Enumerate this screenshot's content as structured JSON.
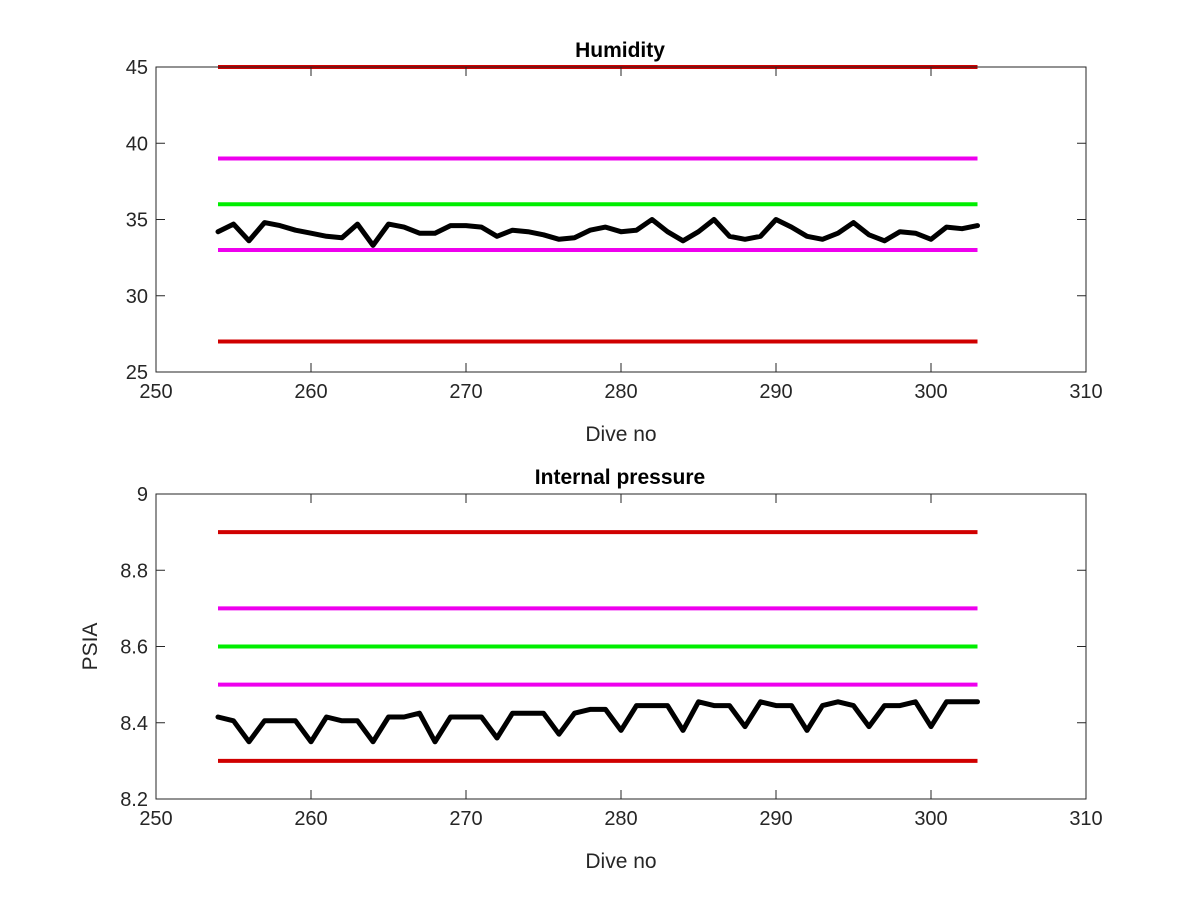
{
  "chart_data": [
    {
      "type": "line",
      "title": "Humidity",
      "xlabel": "Dive no",
      "ylabel": "",
      "xlim": [
        250,
        310
      ],
      "ylim": [
        25,
        45
      ],
      "xticks": [
        250,
        260,
        270,
        280,
        290,
        300,
        310
      ],
      "yticks": [
        25,
        30,
        35,
        40,
        45
      ],
      "grid": false,
      "legend": "none",
      "reference_lines": [
        {
          "y": 45,
          "x": [
            254,
            303
          ],
          "color": "#d00000"
        },
        {
          "y": 39,
          "x": [
            254,
            303
          ],
          "color": "#ee00ee"
        },
        {
          "y": 36,
          "x": [
            254,
            303
          ],
          "color": "#00ee00"
        },
        {
          "y": 33,
          "x": [
            254,
            303
          ],
          "color": "#ee00ee"
        },
        {
          "y": 27,
          "x": [
            254,
            303
          ],
          "color": "#d00000"
        }
      ],
      "series": [
        {
          "color": "#000000",
          "x": [
            254,
            255,
            256,
            257,
            258,
            259,
            260,
            261,
            262,
            263,
            264,
            265,
            266,
            267,
            268,
            269,
            270,
            271,
            272,
            273,
            274,
            275,
            276,
            277,
            278,
            279,
            280,
            281,
            282,
            283,
            284,
            285,
            286,
            287,
            288,
            289,
            290,
            291,
            292,
            293,
            294,
            295,
            296,
            297,
            298,
            299,
            300,
            301,
            302,
            303
          ],
          "y": [
            34.2,
            34.7,
            33.6,
            34.8,
            34.6,
            34.3,
            34.1,
            33.9,
            33.8,
            34.7,
            33.3,
            34.7,
            34.5,
            34.1,
            34.1,
            34.6,
            34.6,
            34.5,
            33.9,
            34.3,
            34.2,
            34.0,
            33.7,
            33.8,
            34.3,
            34.5,
            34.2,
            34.3,
            35.0,
            34.2,
            33.6,
            34.2,
            35.0,
            33.9,
            33.7,
            33.9,
            35.0,
            34.5,
            33.9,
            33.7,
            34.1,
            34.8,
            34.0,
            33.6,
            34.2,
            34.1,
            33.7,
            34.5,
            34.4,
            34.6
          ]
        }
      ]
    },
    {
      "type": "line",
      "title": "Internal pressure",
      "xlabel": "Dive no",
      "ylabel": "PSIA",
      "xlim": [
        250,
        310
      ],
      "ylim": [
        8.2,
        9
      ],
      "xticks": [
        250,
        260,
        270,
        280,
        290,
        300,
        310
      ],
      "yticks": [
        8.2,
        8.4,
        8.6,
        8.8,
        9
      ],
      "grid": false,
      "legend": "none",
      "reference_lines": [
        {
          "y": 8.9,
          "x": [
            254,
            303
          ],
          "color": "#d00000"
        },
        {
          "y": 8.7,
          "x": [
            254,
            303
          ],
          "color": "#ee00ee"
        },
        {
          "y": 8.6,
          "x": [
            254,
            303
          ],
          "color": "#00ee00"
        },
        {
          "y": 8.5,
          "x": [
            254,
            303
          ],
          "color": "#ee00ee"
        },
        {
          "y": 8.3,
          "x": [
            254,
            303
          ],
          "color": "#d00000"
        }
      ],
      "series": [
        {
          "color": "#000000",
          "x": [
            254,
            255,
            256,
            257,
            258,
            259,
            260,
            261,
            262,
            263,
            264,
            265,
            266,
            267,
            268,
            269,
            270,
            271,
            272,
            273,
            274,
            275,
            276,
            277,
            278,
            279,
            280,
            281,
            282,
            283,
            284,
            285,
            286,
            287,
            288,
            289,
            290,
            291,
            292,
            293,
            294,
            295,
            296,
            297,
            298,
            299,
            300,
            301,
            302,
            303
          ],
          "y": [
            8.415,
            8.405,
            8.35,
            8.405,
            8.405,
            8.405,
            8.35,
            8.415,
            8.405,
            8.405,
            8.35,
            8.415,
            8.415,
            8.425,
            8.35,
            8.415,
            8.415,
            8.415,
            8.36,
            8.425,
            8.425,
            8.425,
            8.37,
            8.425,
            8.435,
            8.435,
            8.38,
            8.445,
            8.445,
            8.445,
            8.38,
            8.455,
            8.445,
            8.445,
            8.39,
            8.455,
            8.445,
            8.445,
            8.38,
            8.445,
            8.455,
            8.445,
            8.39,
            8.445,
            8.445,
            8.455,
            8.39,
            8.455,
            8.455,
            8.455
          ]
        }
      ]
    }
  ]
}
